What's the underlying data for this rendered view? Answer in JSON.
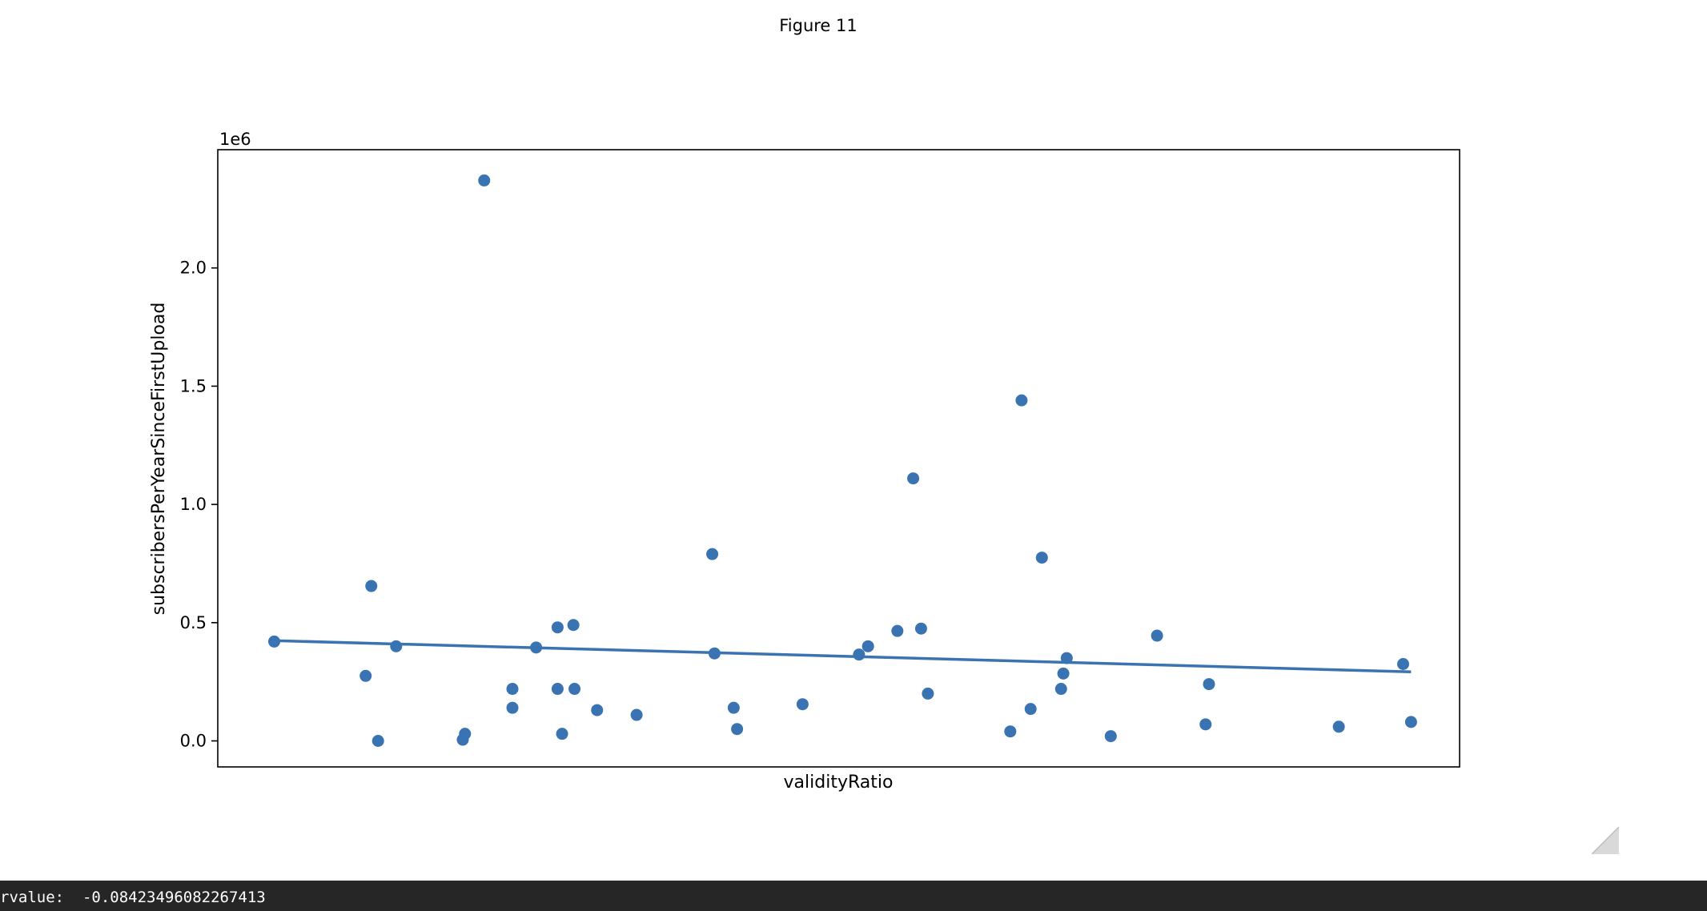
{
  "figure": {
    "title": "Figure 11"
  },
  "status": {
    "label": "rvalue:",
    "value": "-0.08423496082267413"
  },
  "colors": {
    "points": "#3a73b2",
    "line": "#3a73b2",
    "status_bg": "#262626"
  },
  "chart_data": {
    "type": "scatter",
    "xlabel": "validityRatio",
    "ylabel": "subscribersPerYearSinceFirstUpload",
    "y_offset_text": "1e6",
    "x_ticks_shown": false,
    "xlim": [
      -0.5,
      10.5
    ],
    "ylim": [
      -0.11,
      2.5
    ],
    "yticks": [
      0.0,
      0.5,
      1.0,
      1.5,
      2.0
    ],
    "ytick_labels": [
      "0.0",
      "0.5",
      "1.0",
      "1.5",
      "2.0"
    ],
    "grid": false,
    "series": [
      {
        "kind": "points",
        "x": [
          0.0,
          0.81,
          0.86,
          0.92,
          1.08,
          1.67,
          1.69,
          1.86,
          2.11,
          2.11,
          2.32,
          2.51,
          2.51,
          2.55,
          2.65,
          2.66,
          2.86,
          3.21,
          3.88,
          3.9,
          4.07,
          4.1,
          4.68,
          5.18,
          5.26,
          5.52,
          5.66,
          5.73,
          5.79,
          6.52,
          6.62,
          6.7,
          6.8,
          6.97,
          6.99,
          7.02,
          7.41,
          7.82,
          8.25,
          8.28,
          9.43,
          10.0,
          10.07
        ],
        "y": [
          0.42,
          0.275,
          0.655,
          0.0,
          0.4,
          0.005,
          0.03,
          2.37,
          0.22,
          0.14,
          0.395,
          0.48,
          0.22,
          0.03,
          0.49,
          0.22,
          0.13,
          0.11,
          0.79,
          0.37,
          0.14,
          0.05,
          0.155,
          0.365,
          0.4,
          0.465,
          1.11,
          0.475,
          0.2,
          0.04,
          1.44,
          0.135,
          0.775,
          0.22,
          0.285,
          0.35,
          0.02,
          0.445,
          0.07,
          0.24,
          0.06,
          0.325,
          0.08
        ]
      },
      {
        "kind": "fit_line",
        "x": [
          0.0,
          10.07
        ],
        "y": [
          0.424,
          0.292
        ]
      }
    ]
  }
}
